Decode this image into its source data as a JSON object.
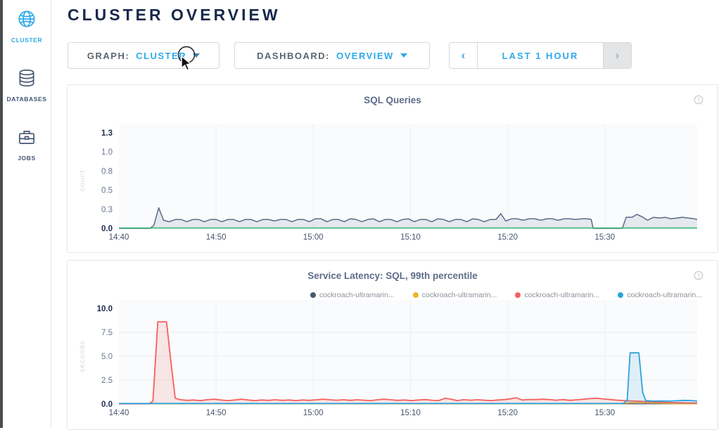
{
  "sidebar": {
    "items": [
      {
        "label": "CLUSTER",
        "icon": "globe-icon",
        "active": true
      },
      {
        "label": "DATABASES",
        "icon": "databases-icon",
        "active": false
      },
      {
        "label": "JOBS",
        "icon": "jobs-icon",
        "active": false
      }
    ]
  },
  "header": {
    "title": "CLUSTER OVERVIEW"
  },
  "controls": {
    "graph": {
      "label": "GRAPH:",
      "value": "CLUSTER"
    },
    "dashboard": {
      "label": "DASHBOARD:",
      "value": "OVERVIEW"
    },
    "time_window": {
      "prev": "‹",
      "label": "LAST 1 HOUR",
      "next": "›"
    }
  },
  "colors": {
    "accent_blue": "#2fa9e9",
    "navy": "#17294a",
    "slate_series": "#5b6b88",
    "green_series": "#26b56e",
    "red_series": "#f4605f",
    "blue_series": "#2ea1dd",
    "yellow_series": "#eab01e",
    "legend_slate": "#475872"
  },
  "chart_data": [
    {
      "type": "area",
      "title": "SQL Queries",
      "ylabel": "count",
      "xlabel": "",
      "ylim": [
        0,
        1.3
      ],
      "yticks": [
        {
          "v": 0.0,
          "label": "0.0",
          "bold": true
        },
        {
          "v": 0.26,
          "label": "0.3",
          "bold": false
        },
        {
          "v": 0.52,
          "label": "0.5",
          "bold": false
        },
        {
          "v": 0.78,
          "label": "0.8",
          "bold": false
        },
        {
          "v": 1.04,
          "label": "1.0",
          "bold": false
        },
        {
          "v": 1.3,
          "label": "1.3",
          "bold": true
        }
      ],
      "gridlines_y": [],
      "xlim_minutes": [
        0,
        59.5
      ],
      "xticks": [
        {
          "m": 0,
          "label": "14:40"
        },
        {
          "m": 10,
          "label": "14:50"
        },
        {
          "m": 20,
          "label": "15:00"
        },
        {
          "m": 30,
          "label": "15:10"
        },
        {
          "m": 40,
          "label": "15:20"
        },
        {
          "m": 50,
          "label": "15:30"
        }
      ],
      "series": [
        {
          "name": "sql-queries",
          "color": "#5b6b88",
          "fill": "rgba(91,107,136,0.13)",
          "width": 1.5,
          "points": [
            [
              0,
              0
            ],
            [
              3.2,
              0
            ],
            [
              3.6,
              0.04
            ],
            [
              4.1,
              0.28
            ],
            [
              4.6,
              0.11
            ],
            [
              5.2,
              0.09
            ],
            [
              5.8,
              0.12
            ],
            [
              6.4,
              0.12
            ],
            [
              7.0,
              0.09
            ],
            [
              7.6,
              0.12
            ],
            [
              8.2,
              0.12
            ],
            [
              8.8,
              0.09
            ],
            [
              9.4,
              0.12
            ],
            [
              10,
              0.12
            ],
            [
              10.6,
              0.09
            ],
            [
              11.2,
              0.12
            ],
            [
              11.8,
              0.12
            ],
            [
              12.4,
              0.09
            ],
            [
              13,
              0.12
            ],
            [
              13.6,
              0.12
            ],
            [
              14.2,
              0.09
            ],
            [
              14.8,
              0.12
            ],
            [
              15.4,
              0.12
            ],
            [
              16,
              0.1
            ],
            [
              16.6,
              0.12
            ],
            [
              17.2,
              0.12
            ],
            [
              17.8,
              0.09
            ],
            [
              18.4,
              0.12
            ],
            [
              19,
              0.12
            ],
            [
              19.6,
              0.09
            ],
            [
              20.2,
              0.13
            ],
            [
              20.8,
              0.13
            ],
            [
              21.4,
              0.09
            ],
            [
              22,
              0.12
            ],
            [
              22.6,
              0.12
            ],
            [
              23.2,
              0.09
            ],
            [
              23.8,
              0.13
            ],
            [
              24.4,
              0.12
            ],
            [
              25,
              0.09
            ],
            [
              25.6,
              0.12
            ],
            [
              26.2,
              0.13
            ],
            [
              26.8,
              0.09
            ],
            [
              27.4,
              0.12
            ],
            [
              28,
              0.12
            ],
            [
              28.6,
              0.09
            ],
            [
              29.2,
              0.12
            ],
            [
              29.8,
              0.13
            ],
            [
              30.4,
              0.09
            ],
            [
              31,
              0.12
            ],
            [
              31.6,
              0.12
            ],
            [
              32.2,
              0.09
            ],
            [
              32.8,
              0.13
            ],
            [
              33.4,
              0.12
            ],
            [
              34,
              0.09
            ],
            [
              34.6,
              0.12
            ],
            [
              35.2,
              0.12
            ],
            [
              35.8,
              0.09
            ],
            [
              36.4,
              0.13
            ],
            [
              37,
              0.12
            ],
            [
              37.6,
              0.09
            ],
            [
              38.2,
              0.12
            ],
            [
              38.8,
              0.12
            ],
            [
              39.3,
              0.2
            ],
            [
              39.8,
              0.1
            ],
            [
              40.4,
              0.13
            ],
            [
              41,
              0.13
            ],
            [
              41.6,
              0.11
            ],
            [
              42.2,
              0.13
            ],
            [
              42.8,
              0.13
            ],
            [
              43.4,
              0.11
            ],
            [
              44,
              0.13
            ],
            [
              44.6,
              0.13
            ],
            [
              45.2,
              0.11
            ],
            [
              45.8,
              0.13
            ],
            [
              46.4,
              0.13
            ],
            [
              47,
              0.12
            ],
            [
              47.6,
              0.13
            ],
            [
              48.2,
              0.13
            ],
            [
              48.6,
              0.12
            ],
            [
              48.8,
              0
            ],
            [
              51.8,
              0
            ],
            [
              52.2,
              0.15
            ],
            [
              52.8,
              0.15
            ],
            [
              53.3,
              0.19
            ],
            [
              53.8,
              0.16
            ],
            [
              54.4,
              0.11
            ],
            [
              55,
              0.15
            ],
            [
              55.6,
              0.14
            ],
            [
              56.2,
              0.15
            ],
            [
              56.8,
              0.13
            ],
            [
              57.4,
              0.14
            ],
            [
              58,
              0.15
            ],
            [
              58.6,
              0.14
            ],
            [
              59.2,
              0.13
            ],
            [
              59.5,
              0.12
            ]
          ]
        },
        {
          "name": "baseline-green",
          "color": "#26b56e",
          "fill": "none",
          "width": 1.5,
          "points": [
            [
              0,
              0.005
            ],
            [
              59.5,
              0.005
            ]
          ]
        }
      ]
    },
    {
      "type": "area",
      "title": "Service Latency: SQL, 99th percentile",
      "ylabel": "seconds",
      "xlabel": "",
      "ylim": [
        0,
        10
      ],
      "yticks": [
        {
          "v": 0.0,
          "label": "0.0",
          "bold": true
        },
        {
          "v": 2.5,
          "label": "2.5",
          "bold": false
        },
        {
          "v": 5.0,
          "label": "5.0",
          "bold": false
        },
        {
          "v": 7.5,
          "label": "7.5",
          "bold": false
        },
        {
          "v": 10.0,
          "label": "10.0",
          "bold": true
        }
      ],
      "gridlines_y": [
        2.5,
        5.0,
        7.5
      ],
      "xlim_minutes": [
        0,
        59.5
      ],
      "xticks": [
        {
          "m": 0,
          "label": "14:40"
        },
        {
          "m": 10,
          "label": "14:50"
        },
        {
          "m": 20,
          "label": "15:00"
        },
        {
          "m": 30,
          "label": "15:10"
        },
        {
          "m": 40,
          "label": "15:20"
        },
        {
          "m": 50,
          "label": "15:30"
        }
      ],
      "legend": [
        {
          "label": "cockroach-ultramarin...",
          "color": "#475872"
        },
        {
          "label": "cockroach-ultramarin...",
          "color": "#f0b429"
        },
        {
          "label": "cockroach-ultramarin...",
          "color": "#f4605f"
        },
        {
          "label": "cockroach-ultramarin...",
          "color": "#2ea1dd"
        }
      ],
      "series": [
        {
          "name": "node-slate",
          "color": "#475872",
          "fill": "none",
          "width": 1.3,
          "points": [
            [
              0,
              0.02
            ],
            [
              59.5,
              0.02
            ]
          ]
        },
        {
          "name": "node-yellow",
          "color": "#eab01e",
          "fill": "rgba(234,176,30,0.15)",
          "width": 1.6,
          "points": [
            [
              0,
              0.02
            ],
            [
              51.5,
              0.02
            ],
            [
              52.3,
              0.12
            ],
            [
              53.2,
              0.16
            ],
            [
              54.2,
              0.13
            ],
            [
              55.2,
              0.1
            ],
            [
              56.2,
              0.06
            ],
            [
              57.2,
              0.03
            ],
            [
              59.5,
              0.02
            ]
          ]
        },
        {
          "name": "node-red",
          "color": "#f4605f",
          "fill": "rgba(244,96,95,0.14)",
          "width": 1.8,
          "points": [
            [
              0,
              0.02
            ],
            [
              3.1,
              0.02
            ],
            [
              3.5,
              0.3
            ],
            [
              4.0,
              8.6
            ],
            [
              4.9,
              8.6
            ],
            [
              5.4,
              4.0
            ],
            [
              5.8,
              0.6
            ],
            [
              6.3,
              0.45
            ],
            [
              7,
              0.38
            ],
            [
              7.7,
              0.42
            ],
            [
              8.4,
              0.35
            ],
            [
              9.1,
              0.45
            ],
            [
              9.8,
              0.5
            ],
            [
              10.5,
              0.42
            ],
            [
              11.2,
              0.36
            ],
            [
              11.9,
              0.42
            ],
            [
              12.6,
              0.5
            ],
            [
              13.3,
              0.42
            ],
            [
              14,
              0.36
            ],
            [
              14.7,
              0.42
            ],
            [
              15.4,
              0.38
            ],
            [
              16.1,
              0.44
            ],
            [
              16.8,
              0.38
            ],
            [
              17.5,
              0.42
            ],
            [
              18.2,
              0.36
            ],
            [
              18.9,
              0.42
            ],
            [
              19.6,
              0.38
            ],
            [
              20.3,
              0.44
            ],
            [
              21,
              0.5
            ],
            [
              21.7,
              0.44
            ],
            [
              22.4,
              0.4
            ],
            [
              23.1,
              0.44
            ],
            [
              23.8,
              0.38
            ],
            [
              24.5,
              0.44
            ],
            [
              25.2,
              0.4
            ],
            [
              25.9,
              0.36
            ],
            [
              26.6,
              0.44
            ],
            [
              27.3,
              0.5
            ],
            [
              28,
              0.44
            ],
            [
              28.7,
              0.38
            ],
            [
              29.4,
              0.42
            ],
            [
              30.1,
              0.36
            ],
            [
              30.8,
              0.42
            ],
            [
              31.5,
              0.46
            ],
            [
              32.2,
              0.4
            ],
            [
              32.9,
              0.36
            ],
            [
              33.6,
              0.6
            ],
            [
              34.2,
              0.5
            ],
            [
              34.8,
              0.36
            ],
            [
              35.5,
              0.45
            ],
            [
              36.2,
              0.4
            ],
            [
              36.9,
              0.45
            ],
            [
              37.6,
              0.4
            ],
            [
              38.3,
              0.36
            ],
            [
              39,
              0.42
            ],
            [
              39.7,
              0.46
            ],
            [
              40.3,
              0.55
            ],
            [
              40.9,
              0.65
            ],
            [
              41.5,
              0.42
            ],
            [
              42.2,
              0.46
            ],
            [
              42.9,
              0.46
            ],
            [
              43.6,
              0.5
            ],
            [
              44.3,
              0.46
            ],
            [
              45,
              0.4
            ],
            [
              45.7,
              0.46
            ],
            [
              46.4,
              0.38
            ],
            [
              47.1,
              0.44
            ],
            [
              47.8,
              0.5
            ],
            [
              48.5,
              0.56
            ],
            [
              49.2,
              0.6
            ],
            [
              49.9,
              0.52
            ],
            [
              50.6,
              0.46
            ],
            [
              51.3,
              0.4
            ],
            [
              52,
              0.36
            ],
            [
              52.7,
              0.32
            ],
            [
              53.4,
              0.3
            ],
            [
              54.1,
              0.26
            ],
            [
              54.8,
              0.24
            ],
            [
              55.5,
              0.2
            ],
            [
              56.2,
              0.18
            ],
            [
              57,
              0.15
            ],
            [
              57.8,
              0.13
            ],
            [
              58.6,
              0.12
            ],
            [
              59.5,
              0.1
            ]
          ]
        },
        {
          "name": "node-blue",
          "color": "#2ea1dd",
          "fill": "rgba(46,161,221,0.13)",
          "width": 1.8,
          "points": [
            [
              0,
              0.05
            ],
            [
              51.9,
              0.05
            ],
            [
              52.3,
              0.4
            ],
            [
              52.6,
              5.35
            ],
            [
              53.5,
              5.35
            ],
            [
              53.9,
              1.2
            ],
            [
              54.2,
              0.35
            ],
            [
              55,
              0.3
            ],
            [
              55.8,
              0.32
            ],
            [
              56.6,
              0.3
            ],
            [
              57.4,
              0.34
            ],
            [
              58.2,
              0.38
            ],
            [
              59,
              0.36
            ],
            [
              59.5,
              0.3
            ]
          ]
        }
      ]
    }
  ]
}
